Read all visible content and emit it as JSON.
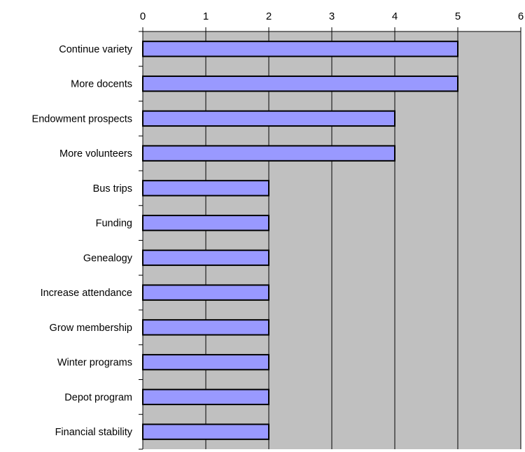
{
  "chart_data": {
    "type": "bar",
    "orientation": "horizontal",
    "title": "",
    "xlabel": "",
    "ylabel": "",
    "categories": [
      "Continue variety",
      "More docents",
      "Endowment prospects",
      "More volunteers",
      "Bus trips",
      "Funding",
      "Genealogy",
      "Increase attendance",
      "Grow membership",
      "Winter programs",
      "Depot program",
      "Financial stability"
    ],
    "values": [
      5,
      5,
      4,
      4,
      2,
      2,
      2,
      2,
      2,
      2,
      2,
      2
    ],
    "xlim": [
      0,
      6
    ],
    "ticks": [
      "0",
      "1",
      "2",
      "3",
      "4",
      "5",
      "6"
    ],
    "tick_position": "top",
    "grid": true,
    "legend": "none",
    "colors": {
      "plot_background": "#c0c0c0",
      "bar_fill": "#9999ff",
      "bar_stroke": "#000000",
      "gridline": "#000000"
    }
  }
}
